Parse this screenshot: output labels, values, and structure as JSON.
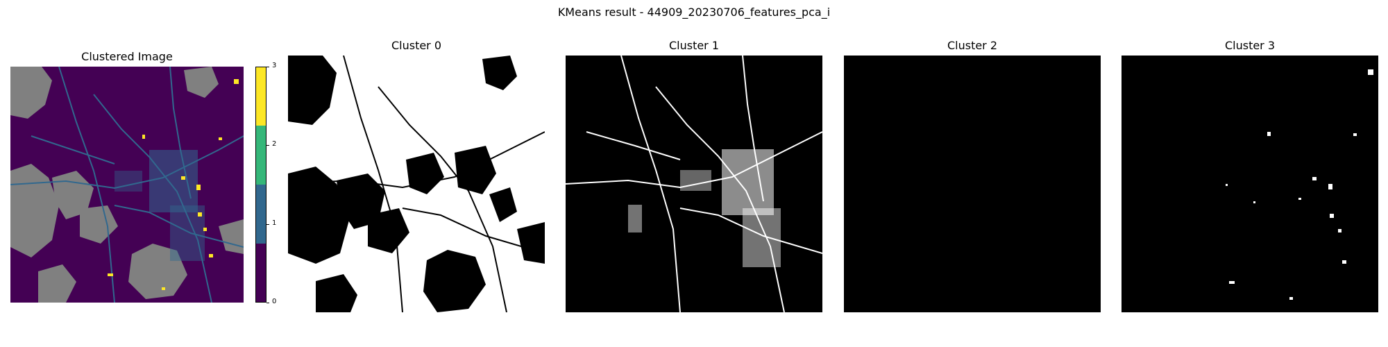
{
  "figure": {
    "title": "KMeans result - 44909_20230706_features_pca_i"
  },
  "panels": [
    {
      "title": "Clustered Image"
    },
    {
      "title": "Cluster 0"
    },
    {
      "title": "Cluster 1"
    },
    {
      "title": "Cluster 2"
    },
    {
      "title": "Cluster 3"
    }
  ],
  "colorbar": {
    "colors": [
      "#440154",
      "#31688e",
      "#35b779",
      "#fde725"
    ],
    "ticks": [
      "0",
      "1",
      "2",
      "3"
    ]
  },
  "chart_data": {
    "type": "heatmap",
    "title": "KMeans result - 44909_20230706_features_pca_i",
    "subplots": [
      "Clustered Image",
      "Cluster 0",
      "Cluster 1",
      "Cluster 2",
      "Cluster 3"
    ],
    "clusters": [
      0,
      1,
      2,
      3
    ],
    "colorbar_range": [
      0,
      3
    ],
    "colorbar_ticks": [
      0,
      1,
      2,
      3
    ],
    "nodata_color": "#808080",
    "mask_colors": {
      "member": "#ffffff",
      "non_member": "#000000"
    }
  }
}
